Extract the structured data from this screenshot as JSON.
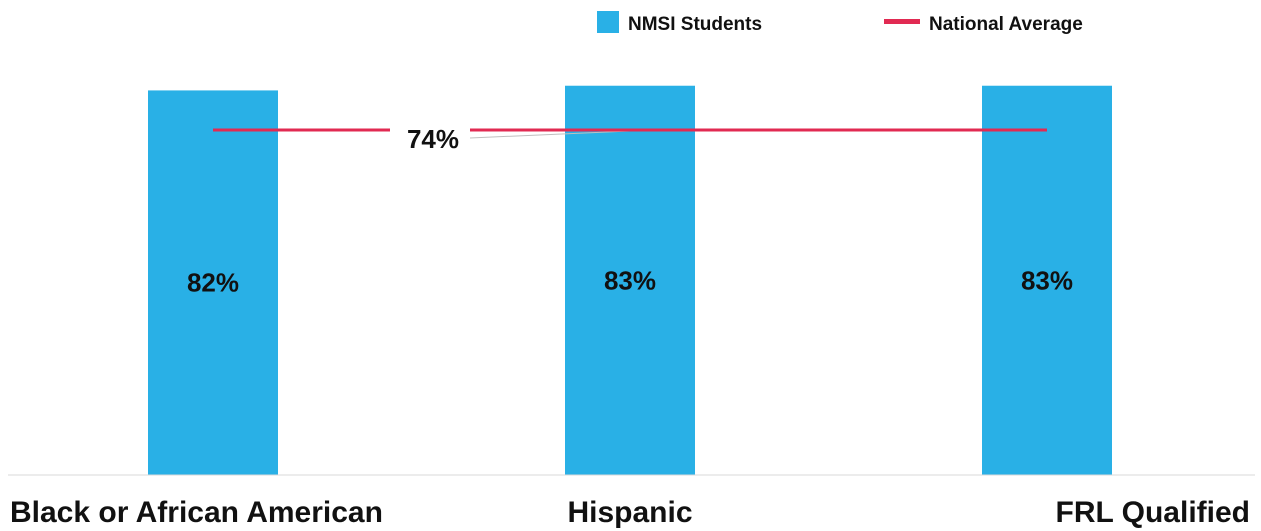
{
  "chart_data": {
    "type": "bar",
    "categories": [
      "Black or African American",
      "Hispanic",
      "FRL Qualified"
    ],
    "series": [
      {
        "name": "NMSI Students",
        "values": [
          82,
          83,
          83
        ],
        "labels": [
          "82%",
          "83%",
          "83%"
        ],
        "color": "#29b0e6"
      },
      {
        "name": "National Average",
        "type": "line",
        "values": [
          74,
          74,
          74
        ],
        "label": "74%",
        "color": "#e12a52"
      }
    ],
    "ylim": [
      0,
      100
    ],
    "grid": false,
    "legend": "top-right"
  }
}
